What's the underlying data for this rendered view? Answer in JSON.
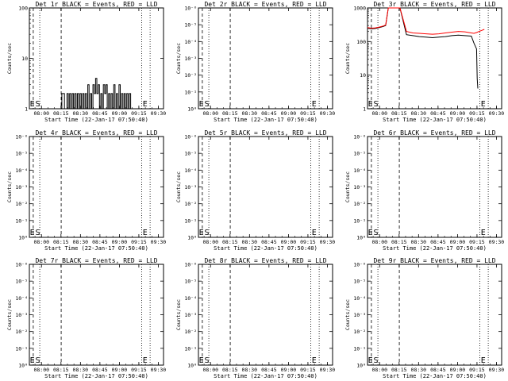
{
  "chart_data": [
    {
      "type": "line",
      "title": "Det 1r BLACK = Events, RED = LLD",
      "xlabel": "Start Time (22-Jan-17 07:50:40)",
      "ylabel": "Counts/sec",
      "x_ticks": [
        "08:00",
        "08:15",
        "08:30",
        "08:45",
        "09:00",
        "09:15",
        "09:30"
      ],
      "x_range": [
        "07:50:40",
        "09:34"
      ],
      "y_scale": "log",
      "y_ticks": [
        "1",
        "10",
        "100"
      ],
      "ylim": [
        1,
        100
      ],
      "markers": [
        "E",
        "S",
        "E"
      ],
      "series": [
        {
          "color": "#000000",
          "x": [
            25,
            25,
            27,
            27,
            29,
            29,
            30,
            30,
            31,
            31,
            32,
            32,
            33,
            33,
            34,
            34,
            35,
            35,
            36,
            36,
            37,
            37,
            38,
            38,
            39,
            39,
            40,
            40,
            41,
            41,
            42,
            42,
            43,
            43,
            44,
            44,
            45,
            45,
            46,
            46,
            47,
            47,
            48,
            48,
            49,
            49,
            50,
            50,
            51,
            51,
            52,
            52,
            53,
            53,
            54,
            54,
            55,
            55,
            56,
            56,
            57,
            57,
            58,
            58,
            59,
            59,
            60,
            60,
            61,
            61,
            62,
            62,
            63,
            63,
            64,
            64,
            65,
            65,
            66,
            66,
            67,
            67,
            68,
            68,
            69,
            69,
            70,
            70,
            71,
            71,
            72,
            72,
            73,
            73,
            74,
            74,
            75,
            75,
            76,
            76,
            77,
            77,
            78,
            78,
            79,
            79
          ],
          "y": [
            1,
            2,
            2,
            1,
            1,
            2,
            2,
            1,
            1,
            2,
            2,
            1,
            1,
            2,
            2,
            1,
            1,
            2,
            2,
            1,
            1,
            2,
            2,
            1,
            1,
            2,
            2,
            1,
            1,
            2,
            2,
            1,
            1,
            2,
            2,
            1,
            1,
            3,
            3,
            1,
            1,
            2,
            2,
            1,
            1,
            3,
            3,
            2,
            2,
            4,
            4,
            2,
            2,
            3,
            3,
            1,
            1,
            2,
            2,
            1,
            1,
            3,
            3,
            2,
            2,
            3,
            3,
            1,
            1,
            2,
            2,
            1,
            1,
            2,
            2,
            1,
            1,
            3,
            3,
            1,
            1,
            2,
            2,
            1,
            1,
            3,
            3,
            1,
            1,
            2,
            2,
            1,
            1,
            2,
            2,
            1,
            1,
            2,
            2,
            1,
            1,
            2,
            2,
            1,
            1,
            1
          ]
        }
      ]
    },
    {
      "type": "line",
      "title": "Det 2r BLACK = Events, RED = LLD",
      "xlabel": "Start Time (22-Jan-17 07:50:40)",
      "ylabel": "Counts/sec",
      "x_ticks": [
        "08:00",
        "08:15",
        "08:30",
        "08:45",
        "09:00",
        "09:15",
        "09:30"
      ],
      "y_scale": "log",
      "y_ticks": [
        "10⁰",
        "10⁻¹",
        "10⁻²",
        "10⁻³",
        "10⁻⁴",
        "10⁻⁵",
        "10⁻⁶"
      ],
      "markers": [
        "E",
        "S",
        "E"
      ],
      "series": []
    },
    {
      "type": "line",
      "title": "Det 3r BLACK = Events, RED = LLD",
      "xlabel": "Start Time (22-Jan-17 07:50:40)",
      "ylabel": "Counts/sec",
      "x_ticks": [
        "08:00",
        "08:15",
        "08:30",
        "08:45",
        "09:00",
        "09:15",
        "09:30"
      ],
      "y_scale": "log",
      "y_ticks": [
        "1",
        "10",
        "100",
        "1000"
      ],
      "ylim": [
        1,
        1000
      ],
      "markers": [
        "E",
        "S",
        "E"
      ],
      "series": [
        {
          "color": "#000000",
          "x": [
            0,
            3,
            6,
            9,
            12,
            14,
            16,
            18,
            20,
            22,
            25,
            30,
            35,
            40,
            45,
            50,
            55,
            60,
            65,
            70,
            75,
            80,
            82,
            84,
            84.5,
            85
          ],
          "y": [
            250,
            240,
            245,
            260,
            280,
            300,
            1000,
            1000,
            1000,
            1000,
            1000,
            160,
            150,
            140,
            135,
            130,
            135,
            140,
            150,
            155,
            150,
            145,
            90,
            60,
            8,
            4
          ]
        },
        {
          "color": "#ff0000",
          "x": [
            0,
            3,
            6,
            9,
            12,
            14,
            16,
            18,
            20,
            22,
            25,
            30,
            35,
            40,
            45,
            50,
            55,
            60,
            65,
            70,
            75,
            80,
            82,
            84,
            86,
            88,
            90
          ],
          "y": [
            260,
            250,
            255,
            270,
            290,
            310,
            1000,
            1000,
            1000,
            1000,
            1000,
            200,
            180,
            175,
            170,
            165,
            170,
            180,
            190,
            200,
            195,
            180,
            175,
            185,
            200,
            215,
            230
          ]
        }
      ]
    },
    {
      "type": "line",
      "title": "Det 4r BLACK = Events, RED = LLD",
      "xlabel": "Start Time (22-Jan-17 07:50:40)",
      "ylabel": "Counts/sec",
      "x_ticks": [
        "08:00",
        "08:15",
        "08:30",
        "08:45",
        "09:00",
        "09:15",
        "09:30"
      ],
      "y_scale": "log",
      "y_ticks": [
        "10⁰",
        "10⁻¹",
        "10⁻²",
        "10⁻³",
        "10⁻⁴",
        "10⁻⁵",
        "10⁻⁶"
      ],
      "markers": [
        "E",
        "S",
        "E"
      ],
      "series": []
    },
    {
      "type": "line",
      "title": "Det 5r BLACK = Events, RED = LLD",
      "xlabel": "Start Time (22-Jan-17 07:50:40)",
      "ylabel": "Counts/sec",
      "x_ticks": [
        "08:00",
        "08:15",
        "08:30",
        "08:45",
        "09:00",
        "09:15",
        "09:30"
      ],
      "y_scale": "log",
      "y_ticks": [
        "10⁰",
        "10⁻¹",
        "10⁻²",
        "10⁻³",
        "10⁻⁴",
        "10⁻⁵",
        "10⁻⁶"
      ],
      "markers": [
        "E",
        "S",
        "E"
      ],
      "series": []
    },
    {
      "type": "line",
      "title": "Det 6r BLACK = Events, RED = LLD",
      "xlabel": "Start Time (22-Jan-17 07:50:40)",
      "ylabel": "Counts/sec",
      "x_ticks": [
        "08:00",
        "08:15",
        "08:30",
        "08:45",
        "09:00",
        "09:15",
        "09:30"
      ],
      "y_scale": "log",
      "y_ticks": [
        "10⁰",
        "10⁻¹",
        "10⁻²",
        "10⁻³",
        "10⁻⁴",
        "10⁻⁵",
        "10⁻⁶"
      ],
      "markers": [
        "E",
        "S",
        "E"
      ],
      "series": []
    },
    {
      "type": "line",
      "title": "Det 7r BLACK = Events, RED = LLD",
      "xlabel": "Start Time (22-Jan-17 07:50:40)",
      "ylabel": "Counts/sec",
      "x_ticks": [
        "08:00",
        "08:15",
        "08:30",
        "08:45",
        "09:00",
        "09:15",
        "09:30"
      ],
      "y_scale": "log",
      "y_ticks": [
        "10⁰",
        "10⁻¹",
        "10⁻²",
        "10⁻³",
        "10⁻⁴",
        "10⁻⁵",
        "10⁻⁶"
      ],
      "markers": [
        "E",
        "S",
        "E"
      ],
      "series": []
    },
    {
      "type": "line",
      "title": "Det 8r BLACK = Events, RED = LLD",
      "xlabel": "Start Time (22-Jan-17 07:50:40)",
      "ylabel": "Counts/sec",
      "x_ticks": [
        "08:00",
        "08:15",
        "08:30",
        "08:45",
        "09:00",
        "09:15",
        "09:30"
      ],
      "y_scale": "log",
      "y_ticks": [
        "10⁰",
        "10⁻¹",
        "10⁻²",
        "10⁻³",
        "10⁻⁴",
        "10⁻⁵",
        "10⁻⁶"
      ],
      "markers": [
        "E",
        "S",
        "E"
      ],
      "series": []
    },
    {
      "type": "line",
      "title": "Det 9r BLACK = Events, RED = LLD",
      "xlabel": "Start Time (22-Jan-17 07:50:40)",
      "ylabel": "Counts/sec",
      "x_ticks": [
        "08:00",
        "08:15",
        "08:30",
        "08:45",
        "09:00",
        "09:15",
        "09:30"
      ],
      "y_scale": "log",
      "y_ticks": [
        "10⁰",
        "10⁻¹",
        "10⁻²",
        "10⁻³",
        "10⁻⁴",
        "10⁻⁵",
        "10⁻⁶"
      ],
      "markers": [
        "E",
        "S",
        "E"
      ],
      "series": []
    }
  ]
}
